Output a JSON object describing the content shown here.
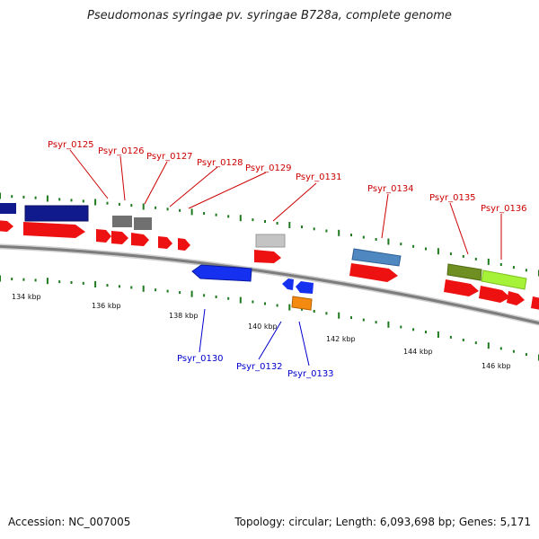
{
  "title": "Pseudomonas syringae pv. syringae B728a, complete genome",
  "footer": {
    "accession": "Accession: NC_007005",
    "summary": "Topology: circular; Length: 6,093,698 bp; Genes: 5,171"
  },
  "colors": {
    "backbone": "#8a8a8a",
    "tick": "#1f7a1f",
    "label_top": "#cc0000",
    "label_bottom": "#0000cc",
    "cds": "#ee1111"
  },
  "scale_labels": [
    "134 kbp",
    "136 kbp",
    "138 kbp",
    "140 kbp",
    "142 kbp",
    "144 kbp",
    "146 kbp"
  ],
  "gene_labels_top": [
    "Psyr_0125",
    "Psyr_0126",
    "Psyr_0127",
    "Psyr_0128",
    "Psyr_0129",
    "Psyr_0131",
    "Psyr_0134",
    "Psyr_0135",
    "Psyr_0136"
  ],
  "gene_labels_bottom": [
    "Psyr_0130",
    "Psyr_0132",
    "Psyr_0133"
  ],
  "feature_colors": {
    "dark_blue": "#101a8c",
    "gray": "#707070",
    "light_gray": "#c4c4c4",
    "steel_blue": "#4f87c0",
    "olive": "#6f8f22",
    "lime": "#a6f238",
    "blue": "#1530ee",
    "orange": "#f48a10",
    "red": "#ee1111"
  }
}
